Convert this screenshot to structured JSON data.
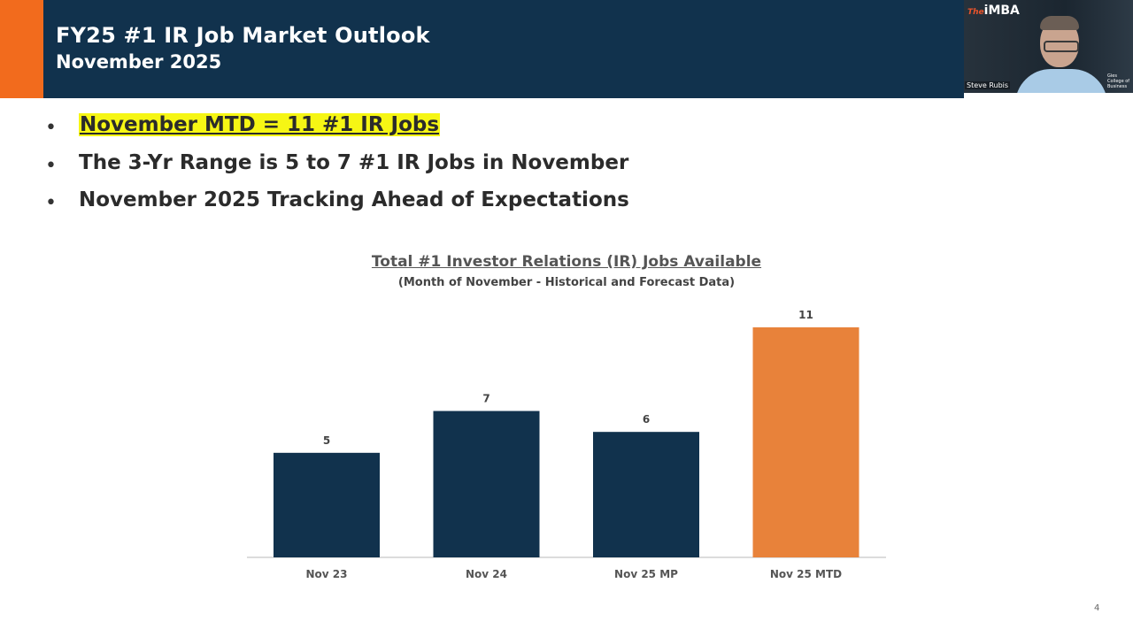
{
  "header": {
    "title": "FY25 #1 IR Job Market Outlook",
    "subtitle": "November 2025"
  },
  "webcam": {
    "logo_prefix": "The",
    "logo": "iMBA",
    "college": "Gies College of Business",
    "name": "Steve Rubis"
  },
  "bullets": [
    {
      "text": "November MTD = 11 #1 IR Jobs",
      "highlighted": true
    },
    {
      "text": "The 3-Yr Range is 5 to 7 #1 IR Jobs in November",
      "highlighted": false
    },
    {
      "text": "November 2025 Tracking Ahead of Expectations",
      "highlighted": false
    }
  ],
  "bullet_symbol": "•",
  "chart_data": {
    "type": "bar",
    "title": "Total #1 Investor Relations (IR) Jobs Available",
    "subtitle": "(Month of November - Historical and Forecast Data)",
    "categories": [
      "Nov 23",
      "Nov 24",
      "Nov 25 MP",
      "Nov 25 MTD"
    ],
    "values": [
      5,
      7,
      6,
      11
    ],
    "data_labels": [
      "5",
      "7",
      "6",
      "11"
    ],
    "colors": [
      "#11324d",
      "#11324d",
      "#11324d",
      "#e8823a"
    ],
    "ylim": [
      0,
      11
    ],
    "grid": false,
    "legend": "none"
  },
  "page_number": "4",
  "colors": {
    "header_bg": "#11324d",
    "accent_orange": "#f26b1d",
    "highlight": "#f6f614"
  }
}
